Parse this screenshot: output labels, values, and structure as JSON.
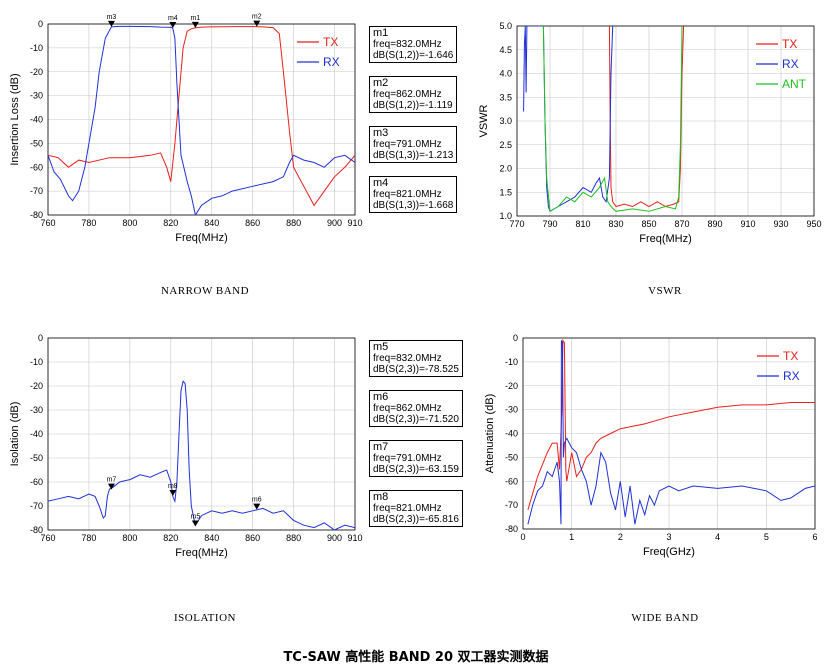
{
  "main_title": "TC-SAW 高性能 BAND 20 双工器实测数据",
  "chart_data": [
    {
      "id": "narrow",
      "type": "line",
      "caption": "NARROW BAND",
      "xlabel": "Freq(MHz)",
      "ylabel": "Insertion Loss (dB)",
      "xlim": [
        760,
        910
      ],
      "ylim": [
        -80,
        0
      ],
      "xticks": [
        "760",
        "780",
        "800",
        "820",
        "840",
        "860",
        "880",
        "900",
        "910"
      ],
      "yticks": [
        "0",
        "-10",
        "-20",
        "-30",
        "-40",
        "-50",
        "-60",
        "-70",
        "-80"
      ],
      "legend": [
        "TX",
        "RX"
      ],
      "series": [
        {
          "name": "TX",
          "color": "#e8201c",
          "x": [
            760,
            765,
            770,
            775,
            780,
            790,
            800,
            810,
            815,
            818,
            820,
            822,
            824,
            826,
            828,
            830,
            832,
            835,
            840,
            850,
            860,
            865,
            870,
            873,
            875,
            878,
            880,
            885,
            890,
            895,
            900,
            905,
            910
          ],
          "y": [
            -55,
            -56,
            -60,
            -57,
            -58,
            -56,
            -56,
            -55,
            -54,
            -60,
            -66,
            -50,
            -30,
            -10,
            -3,
            -2,
            -1.6,
            -1.3,
            -1.2,
            -1.1,
            -1.1,
            -1.2,
            -1.5,
            -4,
            -20,
            -45,
            -60,
            -68,
            -76,
            -70,
            -64,
            -60,
            -55
          ]
        },
        {
          "name": "RX",
          "color": "#2030d8",
          "x": [
            760,
            763,
            766,
            770,
            772,
            775,
            778,
            780,
            783,
            785,
            788,
            791,
            795,
            800,
            810,
            815,
            820,
            821,
            822,
            823,
            825,
            828,
            830,
            832,
            835,
            840,
            845,
            850,
            860,
            870,
            875,
            878,
            880,
            885,
            890,
            895,
            900,
            905,
            910
          ],
          "y": [
            -55,
            -62,
            -65,
            -72,
            -74,
            -70,
            -60,
            -50,
            -35,
            -20,
            -6,
            -1.2,
            -1.0,
            -1.0,
            -1.1,
            -1.3,
            -1.4,
            -1.7,
            -6,
            -25,
            -55,
            -66,
            -72,
            -80,
            -76,
            -73,
            -72,
            -70,
            -68,
            -66,
            -64,
            -58,
            -55,
            -57,
            -58,
            -60,
            -56,
            -55,
            -58
          ]
        }
      ],
      "markers": [
        {
          "label": "m1",
          "x": 832.0,
          "y": -1.646
        },
        {
          "label": "m2",
          "x": 862.0,
          "y": -1.119
        },
        {
          "label": "m3",
          "x": 791.0,
          "y": -1.213
        },
        {
          "label": "m4",
          "x": 821.0,
          "y": -1.668
        }
      ],
      "marker_boxes": [
        {
          "label": "m1",
          "freq": "freq=832.0MHz",
          "val": "dB(S(1,2))=-1.646"
        },
        {
          "label": "m2",
          "freq": "freq=862.0MHz",
          "val": "dB(S(1,2))=-1.119"
        },
        {
          "label": "m3",
          "freq": "freq=791.0MHz",
          "val": "dB(S(1,3))=-1.213"
        },
        {
          "label": "m4",
          "freq": "freq=821.0MHz",
          "val": "dB(S(1,3))=-1.668"
        }
      ]
    },
    {
      "id": "vswr",
      "type": "line",
      "caption": "VSWR",
      "xlabel": "Freq(MHz)",
      "ylabel": "VSWR",
      "xlim": [
        770,
        950
      ],
      "ylim": [
        1.0,
        5.0
      ],
      "xticks": [
        "770",
        "790",
        "810",
        "830",
        "850",
        "870",
        "890",
        "910",
        "930",
        "950"
      ],
      "yticks": [
        "5.0",
        "4.5",
        "4.0",
        "3.5",
        "3.0",
        "2.5",
        "2.0",
        "1.5",
        "1.0"
      ],
      "legend": [
        "TX",
        "RX",
        "ANT"
      ],
      "series": [
        {
          "name": "TX",
          "color": "#e8201c",
          "x": [
            826,
            826.5,
            827,
            828,
            830,
            835,
            840,
            845,
            850,
            855,
            860,
            865,
            868,
            869,
            870,
            871
          ],
          "y": [
            5.0,
            3.0,
            1.6,
            1.3,
            1.2,
            1.25,
            1.2,
            1.3,
            1.2,
            1.3,
            1.2,
            1.25,
            1.3,
            2.0,
            4.0,
            5.0
          ]
        },
        {
          "name": "RX",
          "color": "#2030d8",
          "x": [
            774,
            774.5,
            775,
            775.5,
            776,
            786,
            787,
            788,
            789,
            790,
            795,
            800,
            805,
            810,
            815,
            818,
            820,
            822,
            824,
            826,
            827,
            828
          ],
          "y": [
            3.2,
            4.6,
            5.0,
            3.6,
            5.0,
            5.0,
            3.0,
            1.6,
            1.2,
            1.1,
            1.2,
            1.3,
            1.4,
            1.6,
            1.5,
            1.7,
            1.8,
            1.4,
            1.3,
            1.8,
            4.0,
            5.0
          ]
        },
        {
          "name": "ANT",
          "color": "#22c022",
          "x": [
            786,
            787,
            788,
            790,
            795,
            800,
            805,
            810,
            815,
            820,
            823,
            825,
            827,
            830,
            840,
            850,
            860,
            866,
            868,
            869,
            870
          ],
          "y": [
            5.0,
            3.0,
            1.8,
            1.1,
            1.2,
            1.4,
            1.3,
            1.5,
            1.4,
            1.6,
            1.8,
            1.3,
            1.2,
            1.1,
            1.15,
            1.1,
            1.2,
            1.15,
            1.4,
            2.5,
            5.0
          ]
        }
      ]
    },
    {
      "id": "isolation",
      "type": "line",
      "caption": "ISOLATION",
      "xlabel": "Freq(MHz)",
      "ylabel": "Isolation (dB)",
      "xlim": [
        760,
        910
      ],
      "ylim": [
        -80,
        0
      ],
      "xticks": [
        "760",
        "780",
        "800",
        "820",
        "840",
        "860",
        "880",
        "900",
        "910"
      ],
      "yticks": [
        "0",
        "-10",
        "-20",
        "-30",
        "-40",
        "-50",
        "-60",
        "-70",
        "-80"
      ],
      "legend": [],
      "series": [
        {
          "name": "",
          "color": "#2030d8",
          "x": [
            760,
            765,
            770,
            775,
            780,
            783,
            785,
            787,
            788,
            789,
            790,
            792,
            795,
            800,
            805,
            810,
            815,
            818,
            820,
            821,
            822,
            823,
            824,
            825,
            826,
            827,
            828,
            829,
            830,
            831,
            832,
            835,
            840,
            845,
            850,
            855,
            860,
            865,
            870,
            875,
            880,
            885,
            890,
            895,
            900,
            905,
            910
          ],
          "y": [
            -68,
            -67,
            -66,
            -67,
            -65,
            -66,
            -70,
            -75,
            -74,
            -66,
            -63,
            -62,
            -60,
            -59,
            -57,
            -58,
            -56,
            -55,
            -60,
            -66,
            -68,
            -60,
            -40,
            -22,
            -18,
            -19,
            -30,
            -55,
            -70,
            -74,
            -78,
            -74,
            -72,
            -73,
            -72,
            -73,
            -72,
            -71,
            -73,
            -72,
            -76,
            -78,
            -79,
            -77,
            -80,
            -78,
            -79
          ]
        }
      ],
      "markers": [
        {
          "label": "m5",
          "x": 832.0,
          "y": -78.525
        },
        {
          "label": "m6",
          "x": 862.0,
          "y": -71.52
        },
        {
          "label": "m7",
          "x": 791.0,
          "y": -63.159
        },
        {
          "label": "m8",
          "x": 821.0,
          "y": -65.816
        }
      ],
      "marker_boxes": [
        {
          "label": "m5",
          "freq": "freq=832.0MHz",
          "val": "dB(S(2,3))=-78.525"
        },
        {
          "label": "m6",
          "freq": "freq=862.0MHz",
          "val": "dB(S(2,3))=-71.520"
        },
        {
          "label": "m7",
          "freq": "freq=791.0MHz",
          "val": "dB(S(2,3))=-63.159"
        },
        {
          "label": "m8",
          "freq": "freq=821.0MHz",
          "val": "dB(S(2,3))=-65.816"
        }
      ]
    },
    {
      "id": "wide",
      "type": "line",
      "caption": "WIDE BAND",
      "xlabel": "Freq(GHz)",
      "ylabel": "Attenuation (dB)",
      "xlim": [
        0,
        6
      ],
      "ylim": [
        -80,
        0
      ],
      "xticks": [
        "0",
        "1",
        "2",
        "3",
        "4",
        "5",
        "6"
      ],
      "yticks": [
        "0",
        "-10",
        "-20",
        "-30",
        "-40",
        "-50",
        "-60",
        "-70",
        "-80"
      ],
      "legend": [
        "TX",
        "RX"
      ],
      "series": [
        {
          "name": "TX",
          "color": "#e8201c",
          "x": [
            0.1,
            0.3,
            0.5,
            0.6,
            0.7,
            0.75,
            0.8,
            0.82,
            0.85,
            0.88,
            0.9,
            1.0,
            1.1,
            1.2,
            1.3,
            1.4,
            1.5,
            1.6,
            1.8,
            2.0,
            2.5,
            3.0,
            3.5,
            4.0,
            4.5,
            5.0,
            5.5,
            6.0
          ],
          "y": [
            -72,
            -58,
            -48,
            -44,
            -44,
            -55,
            -30,
            -1,
            -2,
            -55,
            -60,
            -48,
            -58,
            -55,
            -50,
            -48,
            -44,
            -42,
            -40,
            -38,
            -36,
            -33,
            -31,
            -29,
            -28,
            -28,
            -27,
            -27
          ]
        },
        {
          "name": "RX",
          "color": "#2030d8",
          "x": [
            0.1,
            0.2,
            0.3,
            0.4,
            0.5,
            0.6,
            0.7,
            0.75,
            0.78,
            0.79,
            0.81,
            0.83,
            0.85,
            0.9,
            1.0,
            1.1,
            1.2,
            1.3,
            1.4,
            1.5,
            1.6,
            1.7,
            1.8,
            1.9,
            2.0,
            2.1,
            2.2,
            2.3,
            2.4,
            2.5,
            2.6,
            2.7,
            2.8,
            3.0,
            3.2,
            3.5,
            4.0,
            4.5,
            5.0,
            5.3,
            5.5,
            5.8,
            6.0
          ],
          "y": [
            -78,
            -70,
            -64,
            -62,
            -56,
            -58,
            -52,
            -60,
            -78,
            -1,
            -2,
            -50,
            -44,
            -42,
            -46,
            -48,
            -55,
            -60,
            -70,
            -62,
            -48,
            -52,
            -65,
            -72,
            -60,
            -75,
            -62,
            -78,
            -68,
            -74,
            -66,
            -70,
            -64,
            -62,
            -64,
            -62,
            -63,
            -62,
            -64,
            -68,
            -67,
            -63,
            -62
          ]
        }
      ]
    }
  ]
}
